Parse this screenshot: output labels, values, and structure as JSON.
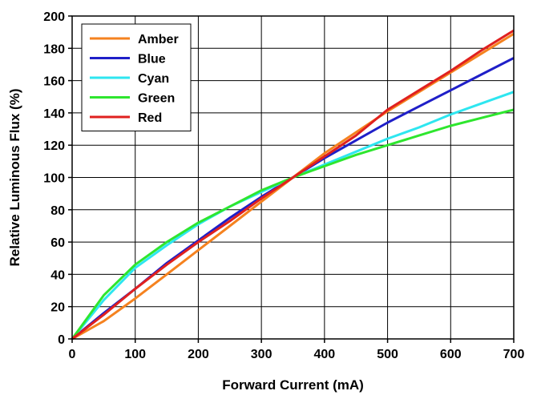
{
  "chart_data": {
    "type": "line",
    "title": "",
    "xlabel": "Forward Current (mA)",
    "ylabel": "Relative Luminous Flux (%)",
    "xlim": [
      0,
      700
    ],
    "ylim": [
      0,
      200
    ],
    "x_ticks": [
      0,
      100,
      200,
      300,
      400,
      500,
      600,
      700
    ],
    "y_ticks": [
      0,
      20,
      40,
      60,
      80,
      100,
      120,
      140,
      160,
      180,
      200
    ],
    "grid": true,
    "legend_position": "top-left",
    "series": [
      {
        "name": "Amber",
        "color": "#f5821f",
        "x": [
          0,
          50,
          100,
          150,
          200,
          250,
          300,
          350,
          400,
          450,
          500,
          550,
          600,
          650,
          700
        ],
        "y": [
          0,
          11,
          25,
          40,
          55,
          70,
          85,
          100,
          115,
          128,
          141,
          153,
          165,
          177,
          189
        ]
      },
      {
        "name": "Blue",
        "color": "#1f1fc8",
        "x": [
          0,
          50,
          100,
          150,
          200,
          250,
          300,
          350,
          400,
          450,
          500,
          550,
          600,
          650,
          700
        ],
        "y": [
          0,
          16,
          31,
          47,
          61,
          75,
          88,
          100,
          112,
          123,
          134,
          144,
          154,
          164,
          174
        ]
      },
      {
        "name": "Cyan",
        "color": "#2ee6f0",
        "x": [
          0,
          50,
          100,
          150,
          200,
          250,
          300,
          350,
          400,
          450,
          500,
          550,
          600,
          650,
          700
        ],
        "y": [
          0,
          24,
          44,
          58,
          71,
          82,
          91,
          100,
          108,
          116,
          124,
          131,
          139,
          146,
          153
        ]
      },
      {
        "name": "Green",
        "color": "#2ee62e",
        "x": [
          0,
          50,
          100,
          150,
          200,
          250,
          300,
          350,
          400,
          450,
          500,
          550,
          600,
          650,
          700
        ],
        "y": [
          0,
          27,
          46,
          60,
          72,
          82,
          92,
          100,
          107,
          114,
          120,
          126,
          132,
          137,
          142
        ]
      },
      {
        "name": "Red",
        "color": "#e0201f",
        "x": [
          0,
          50,
          100,
          150,
          200,
          250,
          300,
          350,
          400,
          450,
          500,
          550,
          600,
          650,
          700
        ],
        "y": [
          0,
          15,
          31,
          46,
          60,
          73,
          87,
          100,
          113,
          126,
          142,
          154,
          166,
          179,
          191
        ]
      }
    ]
  }
}
